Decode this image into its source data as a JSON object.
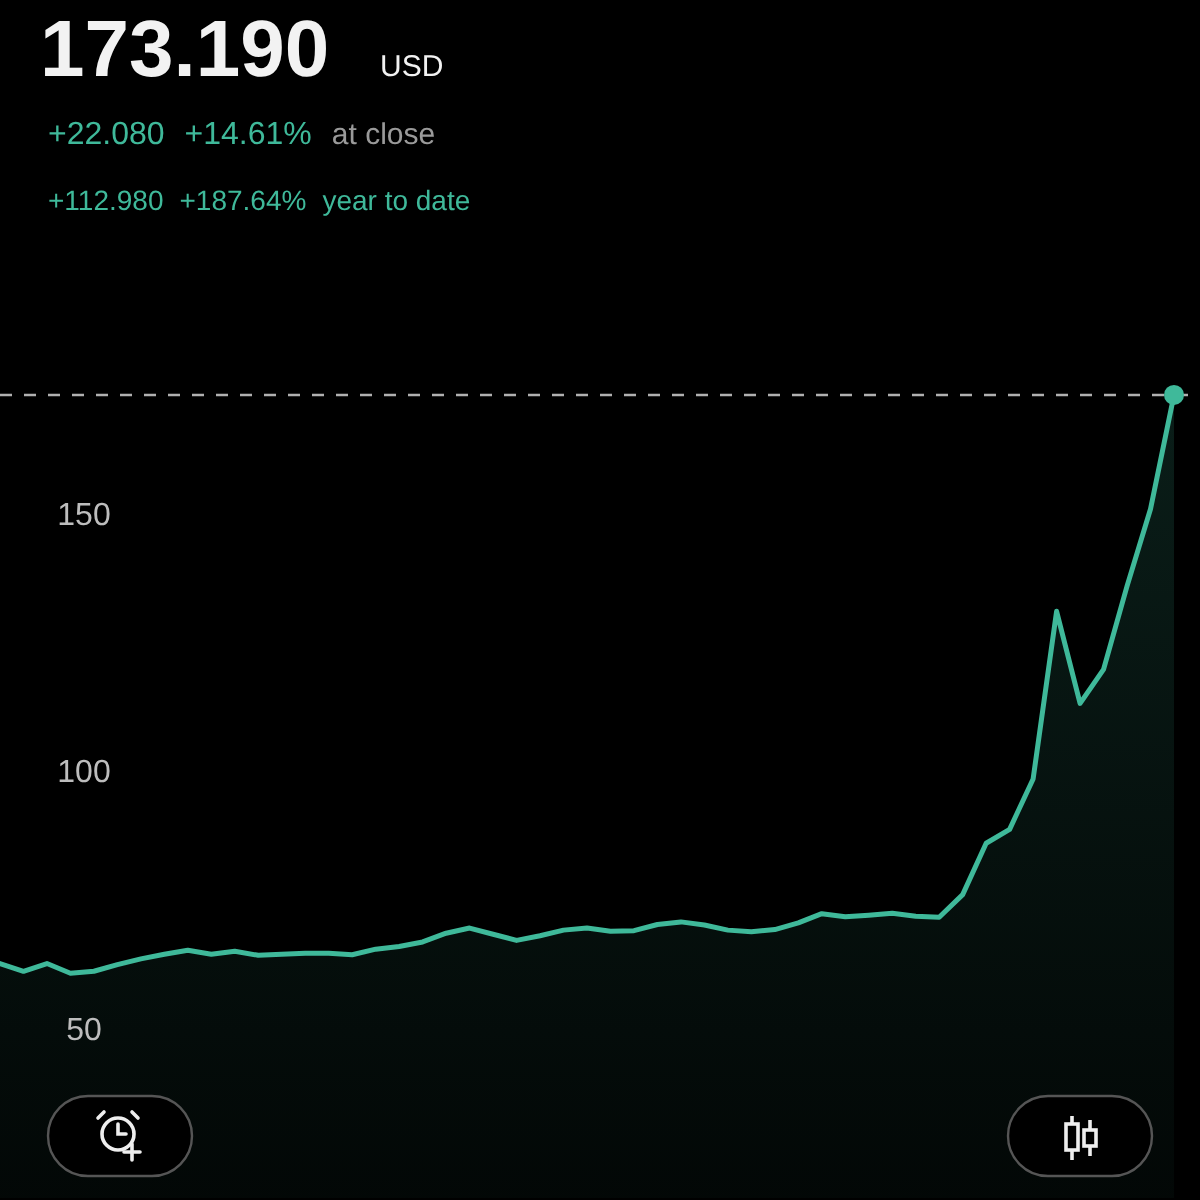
{
  "chart_data": {
    "type": "area",
    "title": "173.190",
    "annotations": [
      "USD",
      "+22.080",
      "+14.61%",
      "at close",
      "+112.980",
      "+187.64%",
      "year to date"
    ],
    "categories": [
      null,
      null,
      null,
      null,
      null,
      null,
      null,
      null,
      null,
      null,
      null,
      null,
      null,
      null,
      null,
      null,
      null,
      null,
      null,
      null,
      null,
      null,
      null,
      null,
      null,
      null,
      null,
      null,
      null,
      null,
      null,
      null,
      null,
      null,
      null,
      null,
      null,
      null,
      null,
      null,
      null,
      null,
      null,
      null,
      null,
      null,
      null,
      null,
      null,
      null,
      null
    ],
    "series": [
      {
        "color": "#3fb99a",
        "values": [
          62.6,
          61.1,
          62.6,
          60.7,
          61.1,
          62.4,
          63.5,
          64.4,
          65.2,
          64.4,
          65.0,
          64.2,
          64.4,
          64.6,
          64.6,
          64.3,
          65.4,
          65.9,
          66.8,
          68.5,
          69.5,
          68.3,
          67.1,
          68.0,
          69.1,
          69.5,
          68.9,
          69.0,
          70.2,
          70.7,
          70.1,
          69.1,
          68.8,
          69.2,
          70.5,
          72.3,
          71.7,
          72.0,
          72.4,
          71.8,
          71.6,
          76,
          86,
          88.7,
          98.5,
          131.1,
          113.2,
          119.8,
          136,
          151,
          173.19
        ]
      }
    ],
    "ylim": [
      17,
      250
    ],
    "yticks": [
      50,
      100,
      150
    ],
    "tick_labels": "y",
    "grid": false,
    "ref_lines": [
      {
        "axis": "y",
        "value": 173.19,
        "color": "#b0b0b0",
        "line_style": "dashed"
      }
    ]
  }
}
